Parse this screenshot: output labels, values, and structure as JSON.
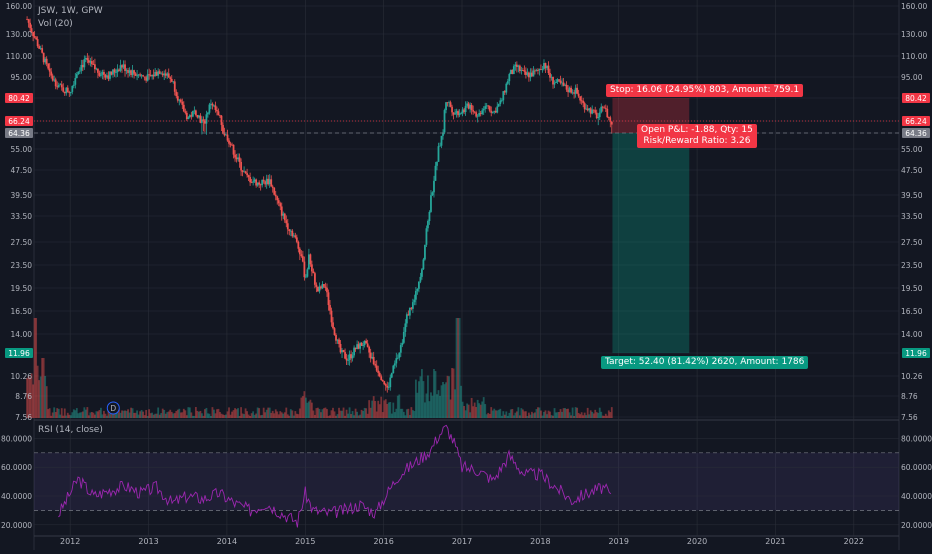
{
  "header": {
    "symbol_info": "JSW, 1W, GPW",
    "volume_indicator": "Vol (20)",
    "rsi_indicator": "RSI (14, close)"
  },
  "price_scale": {
    "ticks": [
      "160.00",
      "130.00",
      "110.00",
      "95.00",
      "80.42",
      "66.24",
      "64.36",
      "55.00",
      "47.50",
      "39.50",
      "33.50",
      "27.50",
      "23.50",
      "19.50",
      "16.50",
      "14.00",
      "11.96",
      "10.26",
      "8.76",
      "7.56"
    ],
    "highlight_labels": [
      {
        "text": "80.42",
        "color": "#f23645"
      },
      {
        "text": "66.24",
        "color": "#f23645"
      },
      {
        "text": "64.36",
        "color": "#787b86"
      },
      {
        "text": "11.96",
        "color": "#089981"
      }
    ]
  },
  "rsi_scale": {
    "ticks": [
      "80.0000",
      "60.0000",
      "40.0000",
      "20.0000"
    ]
  },
  "time_axis": {
    "labels": [
      "2012",
      "2013",
      "2014",
      "2015",
      "2016",
      "2017",
      "2018",
      "2019",
      "2020",
      "2021",
      "2022"
    ]
  },
  "event_marker": {
    "label": "D"
  },
  "position": {
    "stop_label": "Stop: 16.06 (24.95%) 803, Amount: 759.1",
    "pnl_label": "Open P&L: -1.88, Qty: 15",
    "rr_label": "Risk/Reward Ratio: 3.26",
    "target_label": "Target: 52.40 (81.42%) 2620, Amount: 1786",
    "entry_price": 64.36,
    "stop_price": 80.42,
    "target_price": 11.96,
    "last_price": 66.24
  },
  "chart_data": {
    "type": "candlestick",
    "title": "JSW, 1W, GPW",
    "y_scale": "log",
    "ylim": [
      7.56,
      160
    ],
    "xlim": [
      2011.5,
      2022.5
    ],
    "price_path": [
      [
        2011.45,
        145
      ],
      [
        2011.6,
        118
      ],
      [
        2011.75,
        95
      ],
      [
        2011.9,
        86
      ],
      [
        2012.0,
        85
      ],
      [
        2012.1,
        101
      ],
      [
        2012.2,
        106
      ],
      [
        2012.35,
        99
      ],
      [
        2012.5,
        96
      ],
      [
        2012.65,
        103
      ],
      [
        2012.8,
        98
      ],
      [
        2013.0,
        94
      ],
      [
        2013.15,
        100
      ],
      [
        2013.3,
        93
      ],
      [
        2013.4,
        77
      ],
      [
        2013.5,
        68
      ],
      [
        2013.6,
        72
      ],
      [
        2013.7,
        65
      ],
      [
        2013.8,
        78
      ],
      [
        2013.9,
        68
      ],
      [
        2014.0,
        62
      ],
      [
        2014.1,
        53
      ],
      [
        2014.25,
        45
      ],
      [
        2014.4,
        43
      ],
      [
        2014.55,
        44
      ],
      [
        2014.65,
        37
      ],
      [
        2014.75,
        32
      ],
      [
        2014.85,
        29
      ],
      [
        2014.95,
        25
      ],
      [
        2015.0,
        21
      ],
      [
        2015.05,
        25
      ],
      [
        2015.15,
        19
      ],
      [
        2015.25,
        20
      ],
      [
        2015.35,
        15
      ],
      [
        2015.45,
        12
      ],
      [
        2015.55,
        11.5
      ],
      [
        2015.65,
        12.5
      ],
      [
        2015.75,
        13
      ],
      [
        2015.85,
        11.5
      ],
      [
        2015.95,
        10.5
      ],
      [
        2016.05,
        9.2
      ],
      [
        2016.1,
        10.4
      ],
      [
        2016.2,
        12
      ],
      [
        2016.3,
        16
      ],
      [
        2016.4,
        18
      ],
      [
        2016.5,
        24
      ],
      [
        2016.6,
        38
      ],
      [
        2016.7,
        55
      ],
      [
        2016.75,
        63
      ],
      [
        2016.8,
        80
      ],
      [
        2016.9,
        71
      ],
      [
        2017.0,
        72
      ],
      [
        2017.1,
        76
      ],
      [
        2017.2,
        69
      ],
      [
        2017.3,
        77
      ],
      [
        2017.4,
        71
      ],
      [
        2017.5,
        78
      ],
      [
        2017.6,
        96
      ],
      [
        2017.7,
        102
      ],
      [
        2017.8,
        96
      ],
      [
        2017.95,
        98
      ],
      [
        2018.05,
        105
      ],
      [
        2018.15,
        92
      ],
      [
        2018.25,
        90
      ],
      [
        2018.35,
        86
      ],
      [
        2018.45,
        85
      ],
      [
        2018.55,
        76
      ],
      [
        2018.65,
        72
      ],
      [
        2018.75,
        68
      ],
      [
        2018.8,
        77
      ],
      [
        2018.85,
        70
      ],
      [
        2018.92,
        64.36
      ]
    ],
    "volume_bars_approx": "weekly volume histogram; peaks in mid-2011, 2015 and late 2016",
    "rsi": {
      "ylim": [
        15,
        90
      ],
      "bands": [
        30,
        70
      ],
      "values": [
        [
          2011.85,
          27
        ],
        [
          2012.1,
          52
        ],
        [
          2012.3,
          40
        ],
        [
          2012.5,
          44
        ],
        [
          2012.7,
          47
        ],
        [
          2012.9,
          42
        ],
        [
          2013.1,
          46
        ],
        [
          2013.3,
          35
        ],
        [
          2013.5,
          40
        ],
        [
          2013.7,
          38
        ],
        [
          2013.9,
          42
        ],
        [
          2014.1,
          35
        ],
        [
          2014.3,
          30
        ],
        [
          2014.5,
          35
        ],
        [
          2014.7,
          28
        ],
        [
          2014.9,
          22
        ],
        [
          2015.0,
          42
        ],
        [
          2015.1,
          30
        ],
        [
          2015.3,
          28
        ],
        [
          2015.5,
          30
        ],
        [
          2015.7,
          34
        ],
        [
          2015.9,
          28
        ],
        [
          2016.0,
          38
        ],
        [
          2016.2,
          55
        ],
        [
          2016.4,
          63
        ],
        [
          2016.6,
          72
        ],
        [
          2016.7,
          82
        ],
        [
          2016.8,
          88
        ],
        [
          2016.9,
          77
        ],
        [
          2017.0,
          60
        ],
        [
          2017.2,
          58
        ],
        [
          2017.4,
          51
        ],
        [
          2017.6,
          68
        ],
        [
          2017.8,
          55
        ],
        [
          2018.0,
          55
        ],
        [
          2018.2,
          46
        ],
        [
          2018.4,
          37
        ],
        [
          2018.6,
          42
        ],
        [
          2018.8,
          46
        ],
        [
          2018.92,
          39
        ]
      ]
    }
  },
  "colors": {
    "background": "#131722",
    "grid": "#2a2e39",
    "up": "#26a69a",
    "down": "#ef5350",
    "rsi_line": "#9c27b0",
    "rsi_band": "#7e57c2",
    "loss_zone": "#f23645",
    "profit_zone": "#089981"
  }
}
